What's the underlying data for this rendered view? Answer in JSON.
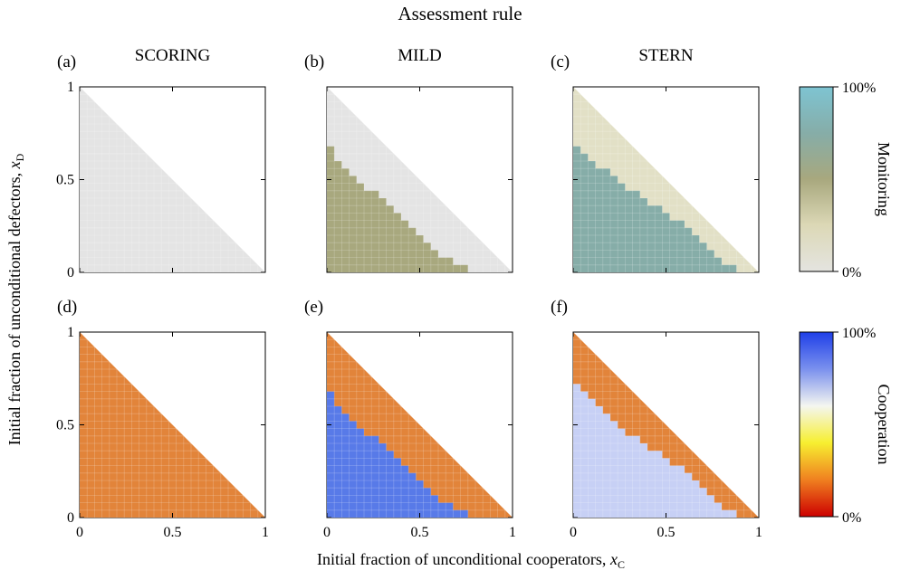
{
  "figure": {
    "title": "Assessment rule",
    "xlabel_main": "Initial fraction of unconditional cooperators, ",
    "xlabel_var": "x",
    "xlabel_sub": "C",
    "ylabel_main": "Initial fraction of unconditional defectors, ",
    "ylabel_var": "x",
    "ylabel_sub": "D"
  },
  "colors": {
    "gray": "#e4e4e4",
    "olive": "#a8a87e",
    "beige": "#e2e0c6",
    "teal": "#86ada8",
    "orange": "#e2843a",
    "blue": "#587ae8",
    "lightblue": "#c7d0f5"
  },
  "colorbars": [
    {
      "label": "Monitoring",
      "top_label": "100%",
      "bottom_label": "0%",
      "stops": [
        "#e4e4e0",
        "#dcd8b6",
        "#a8a87e",
        "#86ada8",
        "#7ec4d2"
      ]
    },
    {
      "label": "Cooperation",
      "top_label": "100%",
      "bottom_label": "0%",
      "stops": [
        "#cc0000",
        "#f08020",
        "#f7ef30",
        "#f4f6f0",
        "#7a90ee",
        "#1f3fe8"
      ]
    }
  ],
  "chart_data": [
    {
      "type": "heatmap",
      "panel": "(a)",
      "title": "SCORING",
      "row": 0,
      "xlim": [
        0,
        1
      ],
      "ylim": [
        0,
        1
      ],
      "xticks": [
        "0",
        "0.5",
        "1"
      ],
      "yticks": [
        "0",
        "0.5",
        "1"
      ],
      "outer_color": "gray",
      "inner_color": "gray",
      "boundary": []
    },
    {
      "type": "heatmap",
      "panel": "(b)",
      "title": "MILD",
      "row": 0,
      "xlim": [
        0,
        1
      ],
      "ylim": [
        0,
        1
      ],
      "xticks": [
        "0",
        "0.5",
        "1"
      ],
      "yticks": [
        "0",
        "0.5",
        "1"
      ],
      "outer_color": "gray",
      "inner_color": "olive",
      "boundary": [
        0.68,
        0.6,
        0.56,
        0.52,
        0.48,
        0.44,
        0.44,
        0.4,
        0.36,
        0.32,
        0.28,
        0.24,
        0.2,
        0.16,
        0.12,
        0.08,
        0.08,
        0.04,
        0.04,
        0,
        0,
        0,
        0,
        0,
        0
      ]
    },
    {
      "type": "heatmap",
      "panel": "(c)",
      "title": "STERN",
      "row": 0,
      "xlim": [
        0,
        1
      ],
      "ylim": [
        0,
        1
      ],
      "xticks": [
        "0",
        "0.5",
        "1"
      ],
      "yticks": [
        "0",
        "0.5",
        "1"
      ],
      "outer_color": "beige",
      "inner_color": "teal",
      "boundary": [
        0.68,
        0.64,
        0.6,
        0.56,
        0.56,
        0.52,
        0.48,
        0.44,
        0.44,
        0.4,
        0.36,
        0.36,
        0.32,
        0.28,
        0.28,
        0.24,
        0.2,
        0.16,
        0.12,
        0.08,
        0.04,
        0.04,
        0,
        0,
        0
      ]
    },
    {
      "type": "heatmap",
      "panel": "(d)",
      "title": "",
      "row": 1,
      "xlim": [
        0,
        1
      ],
      "ylim": [
        0,
        1
      ],
      "xticks": [
        "0",
        "0.5",
        "1"
      ],
      "yticks": [
        "0",
        "0.5",
        "1"
      ],
      "outer_color": "orange",
      "inner_color": "orange",
      "boundary": []
    },
    {
      "type": "heatmap",
      "panel": "(e)",
      "title": "",
      "row": 1,
      "xlim": [
        0,
        1
      ],
      "ylim": [
        0,
        1
      ],
      "xticks": [
        "0",
        "0.5",
        "1"
      ],
      "yticks": [
        "0",
        "0.5",
        "1"
      ],
      "outer_color": "orange",
      "inner_color": "blue",
      "boundary": [
        0.68,
        0.6,
        0.56,
        0.52,
        0.48,
        0.44,
        0.44,
        0.4,
        0.36,
        0.32,
        0.28,
        0.24,
        0.2,
        0.16,
        0.12,
        0.08,
        0.08,
        0.04,
        0.04,
        0,
        0,
        0,
        0,
        0,
        0
      ]
    },
    {
      "type": "heatmap",
      "panel": "(f)",
      "title": "",
      "row": 1,
      "xlim": [
        0,
        1
      ],
      "ylim": [
        0,
        1
      ],
      "xticks": [
        "0",
        "0.5",
        "1"
      ],
      "yticks": [
        "0",
        "0.5",
        "1"
      ],
      "outer_color": "orange",
      "inner_color": "lightblue",
      "boundary": [
        0.72,
        0.68,
        0.64,
        0.6,
        0.56,
        0.52,
        0.48,
        0.44,
        0.44,
        0.4,
        0.36,
        0.36,
        0.32,
        0.28,
        0.28,
        0.24,
        0.2,
        0.16,
        0.12,
        0.08,
        0.04,
        0.04,
        0,
        0,
        0
      ]
    }
  ]
}
